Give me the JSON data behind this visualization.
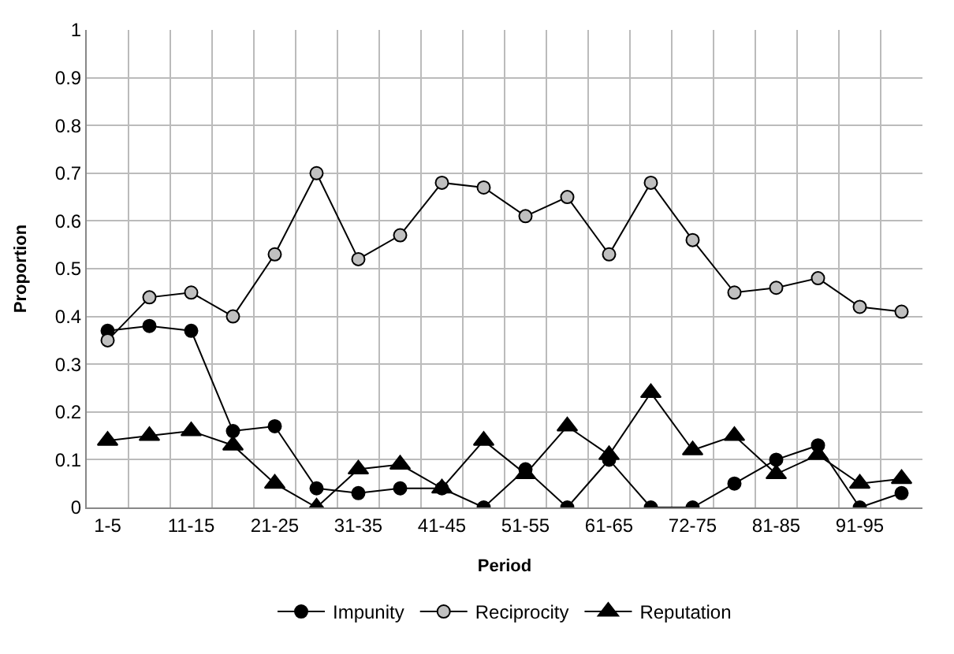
{
  "chart_data": {
    "type": "line",
    "xlabel": "Period",
    "ylabel": "Proportion",
    "categories": [
      "1-5",
      null,
      "11-15",
      null,
      "21-25",
      null,
      "31-35",
      null,
      "41-45",
      null,
      "51-55",
      null,
      "61-65",
      null,
      "72-75",
      null,
      "81-85",
      null,
      "91-95",
      null
    ],
    "series": [
      {
        "name": "Impunity",
        "color": "#000000",
        "marker": "circle",
        "values": [
          0.37,
          0.38,
          0.37,
          0.16,
          0.17,
          0.04,
          0.03,
          0.04,
          0.04,
          0,
          0.08,
          0,
          0.1,
          0,
          0,
          0.05,
          0.1,
          0.13,
          0,
          0.03
        ]
      },
      {
        "name": "Reciprocity",
        "color": "#c0c0c0",
        "marker": "circle",
        "values": [
          0.35,
          0.44,
          0.45,
          0.4,
          0.53,
          0.7,
          0.52,
          0.57,
          0.68,
          0.67,
          0.61,
          0.65,
          0.53,
          0.68,
          0.56,
          0.45,
          0.46,
          0.48,
          0.42,
          0.41
        ]
      },
      {
        "name": "Reputation",
        "color": "#000000",
        "marker": "triangle",
        "values": [
          0.14,
          0.15,
          0.16,
          0.13,
          0.05,
          0,
          0.08,
          0.09,
          0.04,
          0.14,
          0.07,
          0.17,
          0.11,
          0.24,
          0.12,
          0.15,
          0.07,
          0.11,
          0.05,
          0.06
        ]
      }
    ],
    "ylim": [
      0,
      1
    ],
    "yticks": [
      0,
      0.1,
      0.2,
      0.3,
      0.4,
      0.5,
      0.6,
      0.7,
      0.8,
      0.9,
      1
    ],
    "grid": true,
    "legend": "bottom",
    "line_style": "solid"
  }
}
